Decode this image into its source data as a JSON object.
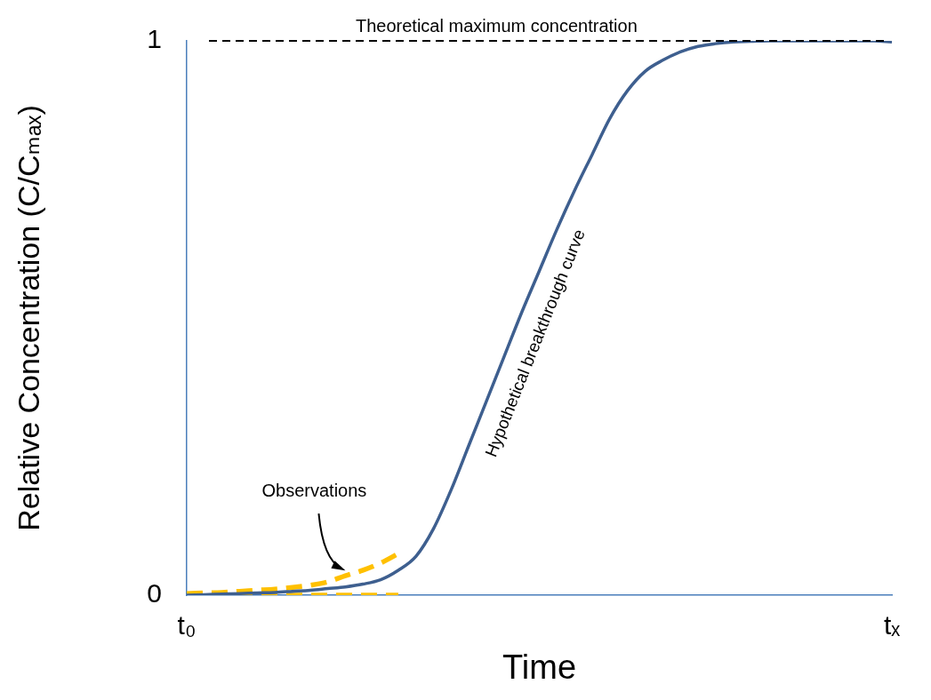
{
  "chart_data": {
    "type": "line",
    "xlabel": "Time",
    "ylabel": "Relative Concentration (C/Cₘₐₓ)",
    "categories": [
      "t₀",
      null,
      null,
      null,
      null,
      null,
      null,
      null,
      null,
      null,
      null,
      null,
      null,
      null,
      null,
      null,
      null,
      null,
      null,
      null,
      null,
      null,
      null,
      null,
      null,
      null,
      null,
      null,
      null,
      null,
      null,
      null,
      null,
      null,
      null,
      null,
      null,
      null,
      null,
      null,
      "tₓ"
    ],
    "ylim": [
      0,
      1
    ],
    "yticks": [
      0,
      1
    ],
    "grid": false,
    "legend": false,
    "marker": "none",
    "series": [
      {
        "name": "Hypothetical breakthrough curve",
        "color": "#3e5f8f",
        "line_style": "solid",
        "values": [
          0,
          0.001,
          0.002,
          0.003,
          0.004,
          0.005,
          0.007,
          0.009,
          0.012,
          0.015,
          0.02,
          0.028,
          0.045,
          0.07,
          0.12,
          0.19,
          0.27,
          0.35,
          0.43,
          0.51,
          0.585,
          0.66,
          0.73,
          0.795,
          0.86,
          0.91,
          0.945,
          0.965,
          0.98,
          0.99,
          0.995,
          0.998,
          0.999,
          1,
          1,
          1,
          1,
          1,
          1,
          1,
          0.998
        ]
      },
      {
        "name": "Observations",
        "color": "#ffc000",
        "line_style": "dashed",
        "values": [
          0.003,
          0.004,
          0.005,
          0.007,
          0.009,
          0.011,
          0.014,
          0.018,
          0.024,
          0.035,
          0.045,
          0.058,
          0.075,
          null,
          null,
          null,
          null,
          null,
          null,
          null,
          null,
          null,
          null,
          null,
          null,
          null,
          null,
          null,
          null,
          null,
          null,
          null,
          null,
          null,
          null,
          null,
          null,
          null,
          null,
          null,
          null
        ]
      },
      {
        "color": "#ffc000",
        "line_style": "dashed",
        "values": [
          0,
          0,
          0,
          0,
          0,
          0,
          0,
          0,
          0,
          0,
          0,
          0,
          0,
          null,
          null,
          null,
          null,
          null,
          null,
          null,
          null,
          null,
          null,
          null,
          null,
          null,
          null,
          null,
          null,
          null,
          null,
          null,
          null,
          null,
          null,
          null,
          null,
          null,
          null,
          null,
          null
        ]
      }
    ],
    "ref_lines": [
      {
        "axis": "y",
        "value": 1,
        "label": "Theoretical maximum concentration",
        "color": "#000000",
        "line_style": "dashed"
      }
    ]
  }
}
